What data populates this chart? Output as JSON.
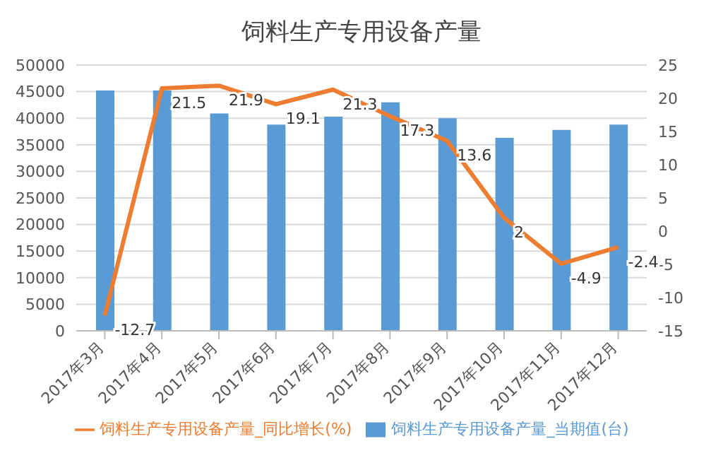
{
  "chart_data": {
    "type": "bar",
    "title": "饲料生产专用设备产量",
    "categories": [
      "2017年3月",
      "2017年4月",
      "2017年5月",
      "2017年6月",
      "2017年7月",
      "2017年8月",
      "2017年9月",
      "2017年10月",
      "2017年11月",
      "2017年12月"
    ],
    "series": [
      {
        "name": "饲料生产专用设备产量_当期值(台)",
        "color": "#5b9bd5",
        "values": [
          45200,
          45200,
          40900,
          38800,
          40300,
          43000,
          40000,
          36300,
          37800,
          38800
        ]
      },
      {
        "name": "饲料生产专用设备产量_同比增长(%)",
        "type": "line",
        "axis": "y2",
        "color": "#ed7d31",
        "values": [
          -12.7,
          21.5,
          21.9,
          19.1,
          21.3,
          17.3,
          13.6,
          2,
          -4.9,
          -2.4
        ],
        "value_labels": [
          "-12.7",
          "21.5",
          "21.9",
          "19.1",
          "21.3",
          "17.3",
          "13.6",
          "2",
          "-4.9",
          "-2.4"
        ]
      }
    ],
    "ylim": [
      0,
      50000
    ],
    "yticks": [
      0,
      5000,
      10000,
      15000,
      20000,
      25000,
      30000,
      35000,
      40000,
      45000,
      50000
    ],
    "y2lim": [
      -15,
      25
    ],
    "y2ticks": [
      -15,
      -10,
      -5,
      0,
      5,
      10,
      15,
      20,
      25
    ],
    "grid": "y",
    "legend": "bottom",
    "marker": "none"
  }
}
